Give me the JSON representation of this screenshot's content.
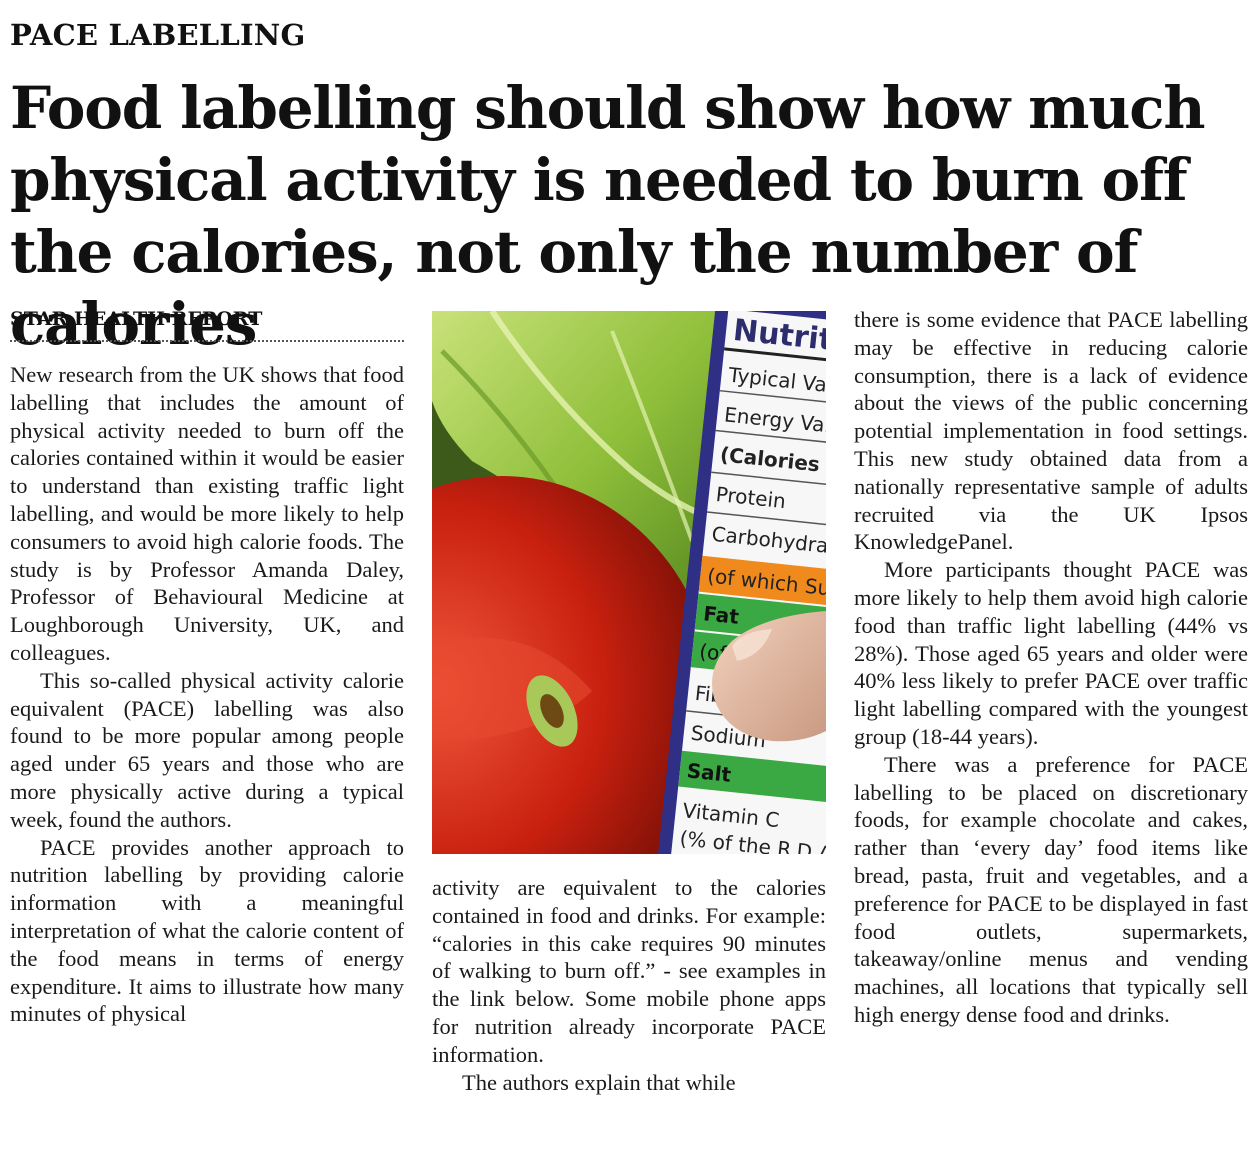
{
  "section": "PACE LABELLING",
  "headline": "Food labelling should show how much physical activity is needed to burn off the calories, not only the number of calories",
  "byline": "STAR HEALTH REPORT",
  "column1": [
    "New research from the UK shows that food labelling that includes the amount of physical activity needed to burn off the calories contained within it would be easier to understand than existing traffic light labelling, and would be more likely to help consumers to avoid high calorie foods. The study is by Professor Amanda Daley, Professor of Behavioural Medicine at Loughborough University, UK, and colleagues.",
    "This so-called physical activity calorie equivalent (PACE) labelling was also found to be more popular among people aged under 65 years and those who are more physically active during a typical week, found the authors.",
    "PACE provides another approach to nutrition labelling by providing calorie information with a meaningful interpretation of what the calorie content of the food means in terms of energy expenditure. It aims to illustrate how many minutes of physical"
  ],
  "column2": [
    "activity are equivalent to the calories contained in food and drinks. For example: “calories in this cake requires 90 minutes of walking to burn off.” - see examples in the link below. Some mobile phone apps for nutrition already incorporate PACE information.",
    "The authors explain that while"
  ],
  "column3": [
    "there is some evidence that PACE labelling may be effective in reducing calorie consumption, there is a lack of evidence about the views of the public concerning potential implementation in food settings. This new study obtained data from a nationally representative sample of adults recruited via the UK Ipsos KnowledgePanel.",
    "More participants thought PACE was more likely to help them avoid high calorie food than traffic light labelling (44% vs 28%). Those aged 65 years and older were 40% less likely to prefer PACE over traffic light labelling compared with the youngest group (18-44 years).",
    "There was a preference for PACE labelling to be placed on discretionary foods, for example chocolate and cakes, rather than ‘every day’ food items like bread, pasta, fruit and vegetables, and a preference for PACE to be displayed in fast food outlets, supermarkets, takeaway/online menus and vending machines, all locations that typically sell high energy dense food and drinks."
  ],
  "photo": {
    "label_title": "Nutriti",
    "label_rows": [
      "Typical Valu",
      "Energy Valu",
      "(Calories",
      "Protein",
      "Carbohydrate",
      "(of which Sugar",
      "Fat",
      "(of whic",
      "Fibre",
      "Sodium",
      "Salt",
      "Vitamin C",
      "(% of the R.D.A"
    ],
    "colors": {
      "tomato": "#c8200f",
      "lettuce": "#8fbf3a",
      "orange_row": "#f08a1c",
      "green_row": "#3aa843"
    }
  }
}
